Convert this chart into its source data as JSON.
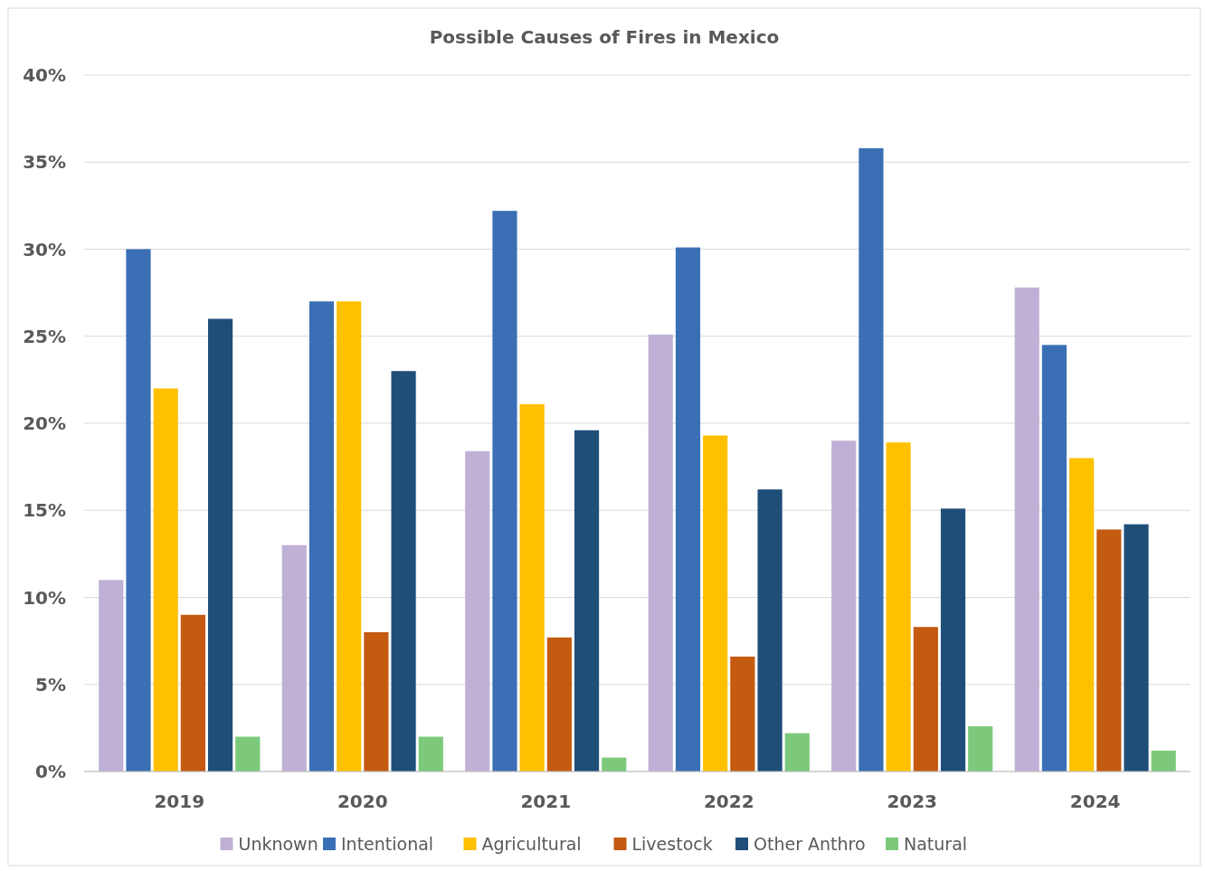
{
  "chart_data": {
    "type": "bar",
    "title": "Possible Causes of Fires in Mexico",
    "categories": [
      "2019",
      "2020",
      "2021",
      "2022",
      "2023",
      "2024"
    ],
    "series": [
      {
        "name": "Unknown",
        "color": "#bfb1d5",
        "values": [
          11,
          13,
          18.4,
          25.1,
          19,
          27.8
        ]
      },
      {
        "name": "Intentional",
        "color": "#3a6fb5",
        "values": [
          30,
          27,
          32.2,
          30.1,
          35.8,
          24.5
        ]
      },
      {
        "name": "Agricultural",
        "color": "#ffc000",
        "values": [
          22,
          27,
          21.1,
          19.3,
          18.9,
          18
        ]
      },
      {
        "name": "Livestock",
        "color": "#c55a11",
        "values": [
          9,
          8,
          7.7,
          6.6,
          8.3,
          13.9
        ]
      },
      {
        "name": "Other Anthro",
        "color": "#1f4e79",
        "values": [
          26,
          23,
          19.6,
          16.2,
          15.1,
          14.2
        ]
      },
      {
        "name": "Natural",
        "color": "#7cc97c",
        "values": [
          2,
          2,
          0.8,
          2.2,
          2.6,
          1.2
        ]
      }
    ],
    "ylim": [
      0,
      40
    ],
    "yticks": [
      {
        "value": 0,
        "label": "0%"
      },
      {
        "value": 5,
        "label": "5%"
      },
      {
        "value": 10,
        "label": "10%"
      },
      {
        "value": 15,
        "label": "15%"
      },
      {
        "value": 20,
        "label": "20%"
      },
      {
        "value": 25,
        "label": "25%"
      },
      {
        "value": 30,
        "label": "30%"
      },
      {
        "value": 35,
        "label": "35%"
      },
      {
        "value": 40,
        "label": "40%"
      }
    ],
    "grid": "y",
    "legend": "bottom"
  }
}
